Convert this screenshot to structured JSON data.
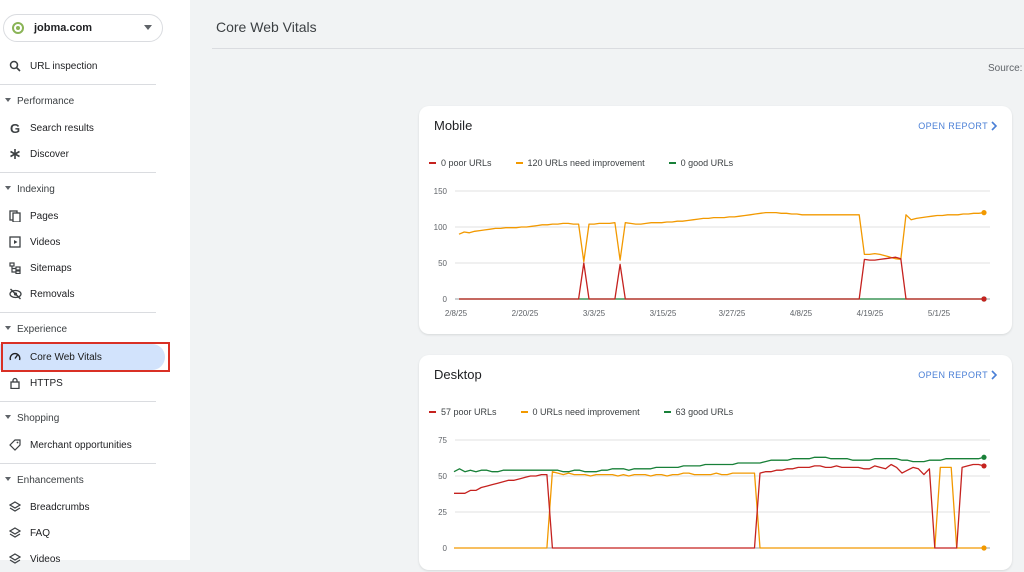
{
  "sidebar": {
    "property": "jobma.com",
    "url_inspection": "URL inspection",
    "sections": {
      "performance": "Performance",
      "indexing": "Indexing",
      "experience": "Experience",
      "shopping": "Shopping",
      "enhancements": "Enhancements"
    },
    "items": {
      "search_results": "Search results",
      "discover": "Discover",
      "pages": "Pages",
      "videos": "Videos",
      "sitemaps": "Sitemaps",
      "removals": "Removals",
      "core_web_vitals": "Core Web Vitals",
      "https": "HTTPS",
      "merchant": "Merchant opportunities",
      "breadcrumbs": "Breadcrumbs",
      "faq": "FAQ",
      "videos2": "Videos"
    }
  },
  "header": {
    "title": "Core Web Vitals",
    "source": "Source: "
  },
  "colors": {
    "poor": "#c5221f",
    "improve": "#f29900",
    "good": "#188038",
    "accent": "#4a7fd6"
  },
  "mobile": {
    "title": "Mobile",
    "open_report": "OPEN REPORT",
    "legend": {
      "poor": "0 poor URLs",
      "improve": "120 URLs need improvement",
      "good": "0 good URLs"
    }
  },
  "desktop": {
    "title": "Desktop",
    "open_report": "OPEN REPORT",
    "legend": {
      "poor": "57 poor URLs",
      "improve": "0 URLs need improvement",
      "good": "63 good URLs"
    }
  },
  "chart_data": [
    {
      "type": "line",
      "title": "Mobile",
      "ylim": [
        0,
        150
      ],
      "y_ticks": [
        "0",
        "50",
        "100",
        "150"
      ],
      "x_ticks": [
        "2/8/25",
        "2/20/25",
        "3/3/25",
        "3/15/25",
        "3/27/25",
        "4/8/25",
        "4/19/25",
        "5/1/25"
      ],
      "grid": true,
      "legend_position": "top-left",
      "series": [
        {
          "name": "0 poor URLs",
          "color": "#c5221f",
          "values": [
            0,
            0,
            0,
            0,
            0,
            0,
            0,
            0,
            0,
            0,
            0,
            0,
            0,
            0,
            0,
            0,
            0,
            0,
            0,
            0,
            0,
            0,
            0,
            0,
            50,
            0,
            0,
            0,
            0,
            0,
            0,
            48,
            0,
            0,
            0,
            0,
            0,
            0,
            0,
            0,
            0,
            0,
            0,
            0,
            0,
            0,
            0,
            0,
            0,
            0,
            0,
            0,
            0,
            0,
            0,
            0,
            0,
            0,
            0,
            0,
            0,
            0,
            0,
            0,
            0,
            0,
            0,
            0,
            0,
            0,
            0,
            0,
            0,
            0,
            0,
            0,
            0,
            0,
            55,
            54,
            54,
            55,
            56,
            57,
            58,
            56,
            0,
            0,
            0,
            0,
            0,
            0,
            0,
            0,
            0,
            0,
            0,
            0,
            0,
            0,
            0,
            0
          ]
        },
        {
          "name": "120 URLs need improvement",
          "color": "#f29900",
          "values": [
            90,
            93,
            92,
            94,
            95,
            96,
            97,
            98,
            98,
            99,
            99,
            99,
            100,
            100,
            101,
            102,
            103,
            103,
            104,
            104,
            105,
            105,
            104,
            104,
            52,
            104,
            104,
            105,
            105,
            105,
            106,
            54,
            106,
            105,
            104,
            104,
            105,
            106,
            106,
            106,
            107,
            107,
            108,
            108,
            109,
            110,
            111,
            112,
            112,
            113,
            113,
            113,
            114,
            114,
            115,
            116,
            117,
            118,
            119,
            120,
            120,
            120,
            119,
            119,
            118,
            118,
            117,
            117,
            117,
            117,
            117,
            117,
            117,
            117,
            117,
            117,
            117,
            117,
            62,
            62,
            63,
            62,
            60,
            58,
            56,
            55,
            117,
            110,
            112,
            113,
            114,
            115,
            116,
            116,
            117,
            117,
            117,
            118,
            118,
            119,
            119,
            120
          ]
        },
        {
          "name": "0 good URLs",
          "color": "#188038",
          "values": [
            0,
            0,
            0,
            0,
            0,
            0,
            0,
            0,
            0,
            0,
            0,
            0,
            0,
            0,
            0,
            0,
            0,
            0,
            0,
            0,
            0,
            0,
            0,
            0,
            0,
            0,
            0,
            0,
            0,
            0,
            0,
            0,
            0,
            0,
            0,
            0,
            0,
            0,
            0,
            0,
            0,
            0,
            0,
            0,
            0,
            0,
            0,
            0,
            0,
            0,
            0,
            0,
            0,
            0,
            0,
            0,
            0,
            0,
            0,
            0,
            0,
            0,
            0,
            0,
            0,
            0,
            0,
            0,
            0,
            0,
            0,
            0,
            0,
            0,
            0,
            0,
            0,
            0,
            0,
            0,
            0,
            0,
            0,
            0,
            0,
            0,
            0,
            0,
            0,
            0,
            0,
            0,
            0,
            0,
            0,
            0,
            0,
            0,
            0,
            0,
            0,
            0
          ]
        }
      ]
    },
    {
      "type": "line",
      "title": "Desktop",
      "ylim": [
        0,
        75
      ],
      "y_ticks": [
        "0",
        "25",
        "50",
        "75"
      ],
      "grid": true,
      "legend_position": "top-left",
      "series": [
        {
          "name": "57 poor URLs",
          "color": "#c5221f",
          "values": [
            38,
            38,
            38,
            40,
            40,
            42,
            43,
            44,
            45,
            46,
            47,
            47,
            48,
            49,
            50,
            50,
            51,
            51,
            0,
            0,
            0,
            0,
            0,
            0,
            0,
            0,
            0,
            0,
            0,
            0,
            0,
            0,
            0,
            0,
            0,
            0,
            0,
            0,
            0,
            0,
            0,
            0,
            0,
            0,
            0,
            0,
            0,
            0,
            0,
            0,
            0,
            0,
            0,
            0,
            0,
            0,
            52,
            53,
            53,
            54,
            54,
            55,
            55,
            56,
            56,
            56,
            57,
            57,
            56,
            56,
            57,
            56,
            56,
            56,
            56,
            55,
            55,
            57,
            56,
            55,
            58,
            56,
            52,
            54,
            56,
            55,
            51,
            55,
            0,
            0,
            0,
            0,
            0,
            56,
            57,
            58,
            58,
            57
          ]
        },
        {
          "name": "0 URLs need improvement",
          "color": "#f29900",
          "values": [
            0,
            0,
            0,
            0,
            0,
            0,
            0,
            0,
            0,
            0,
            0,
            0,
            0,
            0,
            0,
            0,
            0,
            0,
            53,
            52,
            51,
            52,
            51,
            51,
            51,
            50,
            51,
            51,
            51,
            51,
            50,
            51,
            50,
            51,
            51,
            51,
            50,
            51,
            51,
            50,
            51,
            51,
            52,
            52,
            51,
            51,
            51,
            51,
            52,
            51,
            51,
            52,
            52,
            52,
            52,
            52,
            0,
            0,
            0,
            0,
            0,
            0,
            0,
            0,
            0,
            0,
            0,
            0,
            0,
            0,
            0,
            0,
            0,
            0,
            0,
            0,
            0,
            0,
            0,
            0,
            0,
            0,
            0,
            0,
            0,
            0,
            0,
            0,
            0,
            56,
            56,
            56,
            0,
            0,
            0,
            0,
            0,
            0
          ]
        },
        {
          "name": "63 good URLs",
          "color": "#188038",
          "values": [
            53,
            55,
            53,
            54,
            53,
            54,
            54,
            53,
            53,
            54,
            54,
            54,
            54,
            54,
            54,
            54,
            54,
            54,
            54,
            54,
            53,
            53,
            54,
            54,
            53,
            53,
            53,
            54,
            54,
            55,
            55,
            55,
            54,
            55,
            55,
            55,
            55,
            56,
            56,
            56,
            56,
            56,
            57,
            57,
            57,
            57,
            58,
            58,
            58,
            58,
            58,
            58,
            59,
            59,
            59,
            59,
            59,
            60,
            61,
            61,
            61,
            61,
            62,
            62,
            62,
            62,
            63,
            63,
            63,
            62,
            62,
            62,
            62,
            61,
            61,
            61,
            61,
            62,
            62,
            62,
            62,
            62,
            61,
            61,
            60,
            60,
            60,
            61,
            61,
            61,
            62,
            62,
            62,
            62,
            62,
            62,
            62,
            63
          ]
        }
      ]
    }
  ]
}
